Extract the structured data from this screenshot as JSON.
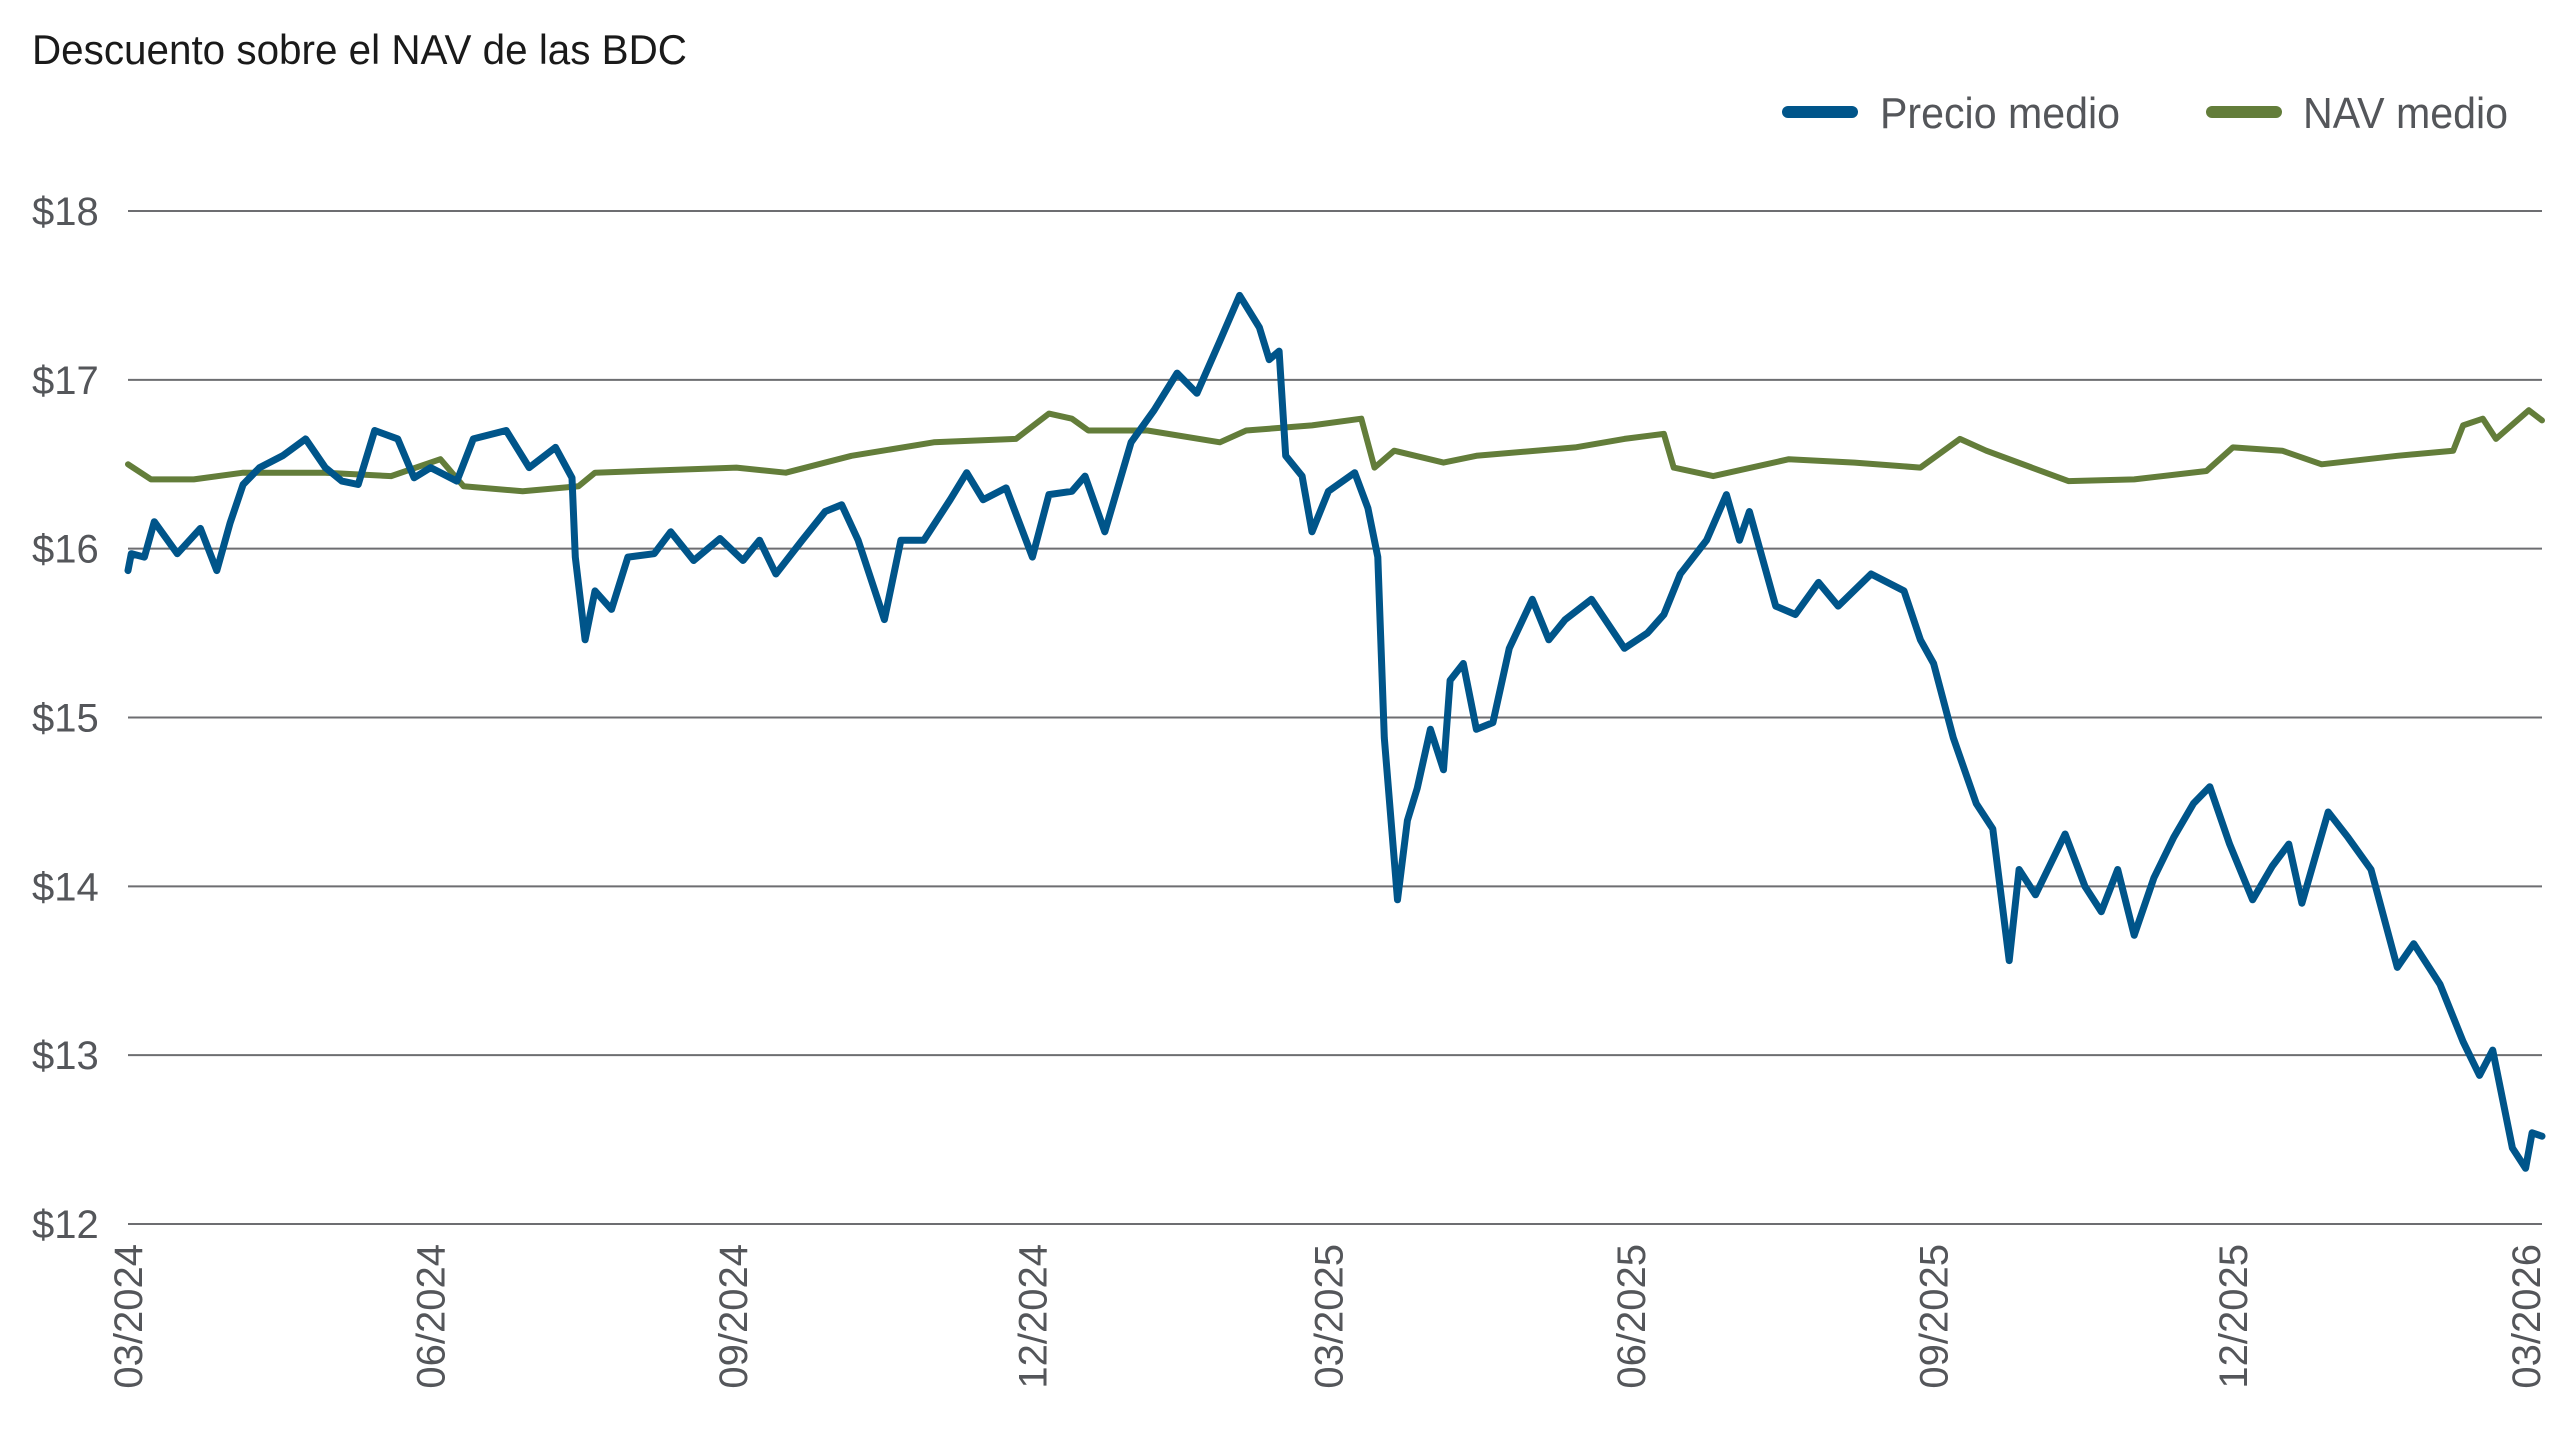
{
  "chart_data": {
    "type": "line",
    "title": "Descuento sobre el NAV de las BDC",
    "xlabel": "",
    "ylabel": "",
    "ylim": [
      12,
      18
    ],
    "xlim": [
      "2024-03-01",
      "2026-03-05"
    ],
    "grid": "horizontal",
    "legend_position": "top-right",
    "y_ticks": [
      12,
      13,
      14,
      15,
      16,
      17,
      18
    ],
    "y_tick_labels": [
      "$12",
      "$13",
      "$14",
      "$15",
      "$16",
      "$17",
      "$18"
    ],
    "x_ticks": [
      "2024-03-01",
      "2024-06-01",
      "2024-09-01",
      "2024-12-01",
      "2025-03-01",
      "2025-06-01",
      "2025-09-01",
      "2025-12-01",
      "2026-03-01"
    ],
    "x_tick_labels": [
      "03/2024",
      "06/2024",
      "09/2024",
      "12/2024",
      "03/2025",
      "06/2025",
      "09/2025",
      "12/2025",
      "03/2026"
    ],
    "series": [
      {
        "name": "Precio medio",
        "color": "#00558a",
        "points": [
          [
            "2024-03-01",
            15.87
          ],
          [
            "2024-03-02",
            15.97
          ],
          [
            "2024-03-06",
            15.95
          ],
          [
            "2024-03-09",
            16.16
          ],
          [
            "2024-03-16",
            15.97
          ],
          [
            "2024-03-23",
            16.12
          ],
          [
            "2024-03-28",
            15.87
          ],
          [
            "2024-04-01",
            16.15
          ],
          [
            "2024-04-05",
            16.38
          ],
          [
            "2024-04-10",
            16.48
          ],
          [
            "2024-04-17",
            16.55
          ],
          [
            "2024-04-24",
            16.65
          ],
          [
            "2024-04-30",
            16.48
          ],
          [
            "2024-05-05",
            16.4
          ],
          [
            "2024-05-10",
            16.38
          ],
          [
            "2024-05-15",
            16.7
          ],
          [
            "2024-05-22",
            16.65
          ],
          [
            "2024-05-27",
            16.42
          ],
          [
            "2024-06-01",
            16.48
          ],
          [
            "2024-06-09",
            16.4
          ],
          [
            "2024-06-14",
            16.65
          ],
          [
            "2024-06-24",
            16.7
          ],
          [
            "2024-07-01",
            16.48
          ],
          [
            "2024-07-09",
            16.6
          ],
          [
            "2024-07-14",
            16.42
          ],
          [
            "2024-07-15",
            15.95
          ],
          [
            "2024-07-18",
            15.46
          ],
          [
            "2024-07-21",
            15.75
          ],
          [
            "2024-07-26",
            15.64
          ],
          [
            "2024-07-31",
            15.95
          ],
          [
            "2024-08-08",
            15.97
          ],
          [
            "2024-08-13",
            16.1
          ],
          [
            "2024-08-20",
            15.93
          ],
          [
            "2024-08-28",
            16.06
          ],
          [
            "2024-09-04",
            15.93
          ],
          [
            "2024-09-09",
            16.05
          ],
          [
            "2024-09-14",
            15.85
          ],
          [
            "2024-09-22",
            16.05
          ],
          [
            "2024-09-29",
            16.22
          ],
          [
            "2024-10-04",
            16.26
          ],
          [
            "2024-10-09",
            16.05
          ],
          [
            "2024-10-17",
            15.58
          ],
          [
            "2024-10-22",
            16.05
          ],
          [
            "2024-10-29",
            16.05
          ],
          [
            "2024-11-06",
            16.29
          ],
          [
            "2024-11-11",
            16.45
          ],
          [
            "2024-11-16",
            16.29
          ],
          [
            "2024-11-23",
            16.36
          ],
          [
            "2024-12-01",
            15.95
          ],
          [
            "2024-12-06",
            16.32
          ],
          [
            "2024-12-13",
            16.34
          ],
          [
            "2024-12-17",
            16.43
          ],
          [
            "2024-12-23",
            16.1
          ],
          [
            "2024-12-31",
            16.63
          ],
          [
            "2025-01-07",
            16.82
          ],
          [
            "2025-01-14",
            17.04
          ],
          [
            "2025-01-20",
            16.92
          ],
          [
            "2025-01-27",
            17.23
          ],
          [
            "2025-02-02",
            17.5
          ],
          [
            "2025-02-08",
            17.31
          ],
          [
            "2025-02-11",
            17.12
          ],
          [
            "2025-02-14",
            17.17
          ],
          [
            "2025-02-16",
            16.55
          ],
          [
            "2025-02-21",
            16.43
          ],
          [
            "2025-02-24",
            16.1
          ],
          [
            "2025-03-01",
            16.34
          ],
          [
            "2025-03-09",
            16.45
          ],
          [
            "2025-03-13",
            16.24
          ],
          [
            "2025-03-16",
            15.95
          ],
          [
            "2025-03-18",
            14.88
          ],
          [
            "2025-03-22",
            13.92
          ],
          [
            "2025-03-25",
            14.39
          ],
          [
            "2025-03-28",
            14.58
          ],
          [
            "2025-04-01",
            14.93
          ],
          [
            "2025-04-05",
            14.69
          ],
          [
            "2025-04-07",
            15.22
          ],
          [
            "2025-04-11",
            15.32
          ],
          [
            "2025-04-15",
            14.93
          ],
          [
            "2025-04-20",
            14.97
          ],
          [
            "2025-04-25",
            15.41
          ],
          [
            "2025-05-02",
            15.7
          ],
          [
            "2025-05-07",
            15.46
          ],
          [
            "2025-05-12",
            15.58
          ],
          [
            "2025-05-20",
            15.7
          ],
          [
            "2025-05-30",
            15.41
          ],
          [
            "2025-06-06",
            15.5
          ],
          [
            "2025-06-11",
            15.61
          ],
          [
            "2025-06-16",
            15.85
          ],
          [
            "2025-06-24",
            16.05
          ],
          [
            "2025-06-30",
            16.32
          ],
          [
            "2025-07-04",
            16.05
          ],
          [
            "2025-07-07",
            16.22
          ],
          [
            "2025-07-15",
            15.66
          ],
          [
            "2025-07-21",
            15.61
          ],
          [
            "2025-07-28",
            15.8
          ],
          [
            "2025-08-03",
            15.66
          ],
          [
            "2025-08-13",
            15.85
          ],
          [
            "2025-08-23",
            15.75
          ],
          [
            "2025-08-28",
            15.46
          ],
          [
            "2025-09-01",
            15.32
          ],
          [
            "2025-09-07",
            14.88
          ],
          [
            "2025-09-14",
            14.49
          ],
          [
            "2025-09-19",
            14.34
          ],
          [
            "2025-09-24",
            13.56
          ],
          [
            "2025-09-27",
            14.1
          ],
          [
            "2025-10-02",
            13.95
          ],
          [
            "2025-10-11",
            14.31
          ],
          [
            "2025-10-17",
            14.0
          ],
          [
            "2025-10-22",
            13.85
          ],
          [
            "2025-10-27",
            14.1
          ],
          [
            "2025-11-01",
            13.71
          ],
          [
            "2025-11-07",
            14.05
          ],
          [
            "2025-11-13",
            14.29
          ],
          [
            "2025-11-19",
            14.49
          ],
          [
            "2025-11-24",
            14.59
          ],
          [
            "2025-11-30",
            14.25
          ],
          [
            "2025-12-07",
            13.92
          ],
          [
            "2025-12-13",
            14.12
          ],
          [
            "2025-12-18",
            14.25
          ],
          [
            "2025-12-22",
            13.9
          ],
          [
            "2025-12-30",
            14.44
          ],
          [
            "2026-01-05",
            14.29
          ],
          [
            "2026-01-12",
            14.1
          ],
          [
            "2026-01-20",
            13.52
          ],
          [
            "2026-01-25",
            13.66
          ],
          [
            "2026-02-02",
            13.42
          ],
          [
            "2026-02-09",
            13.08
          ],
          [
            "2026-02-14",
            12.88
          ],
          [
            "2026-02-18",
            13.03
          ],
          [
            "2026-02-24",
            12.45
          ],
          [
            "2026-02-28",
            12.33
          ],
          [
            "2026-03-02",
            12.54
          ],
          [
            "2026-03-05",
            12.52
          ]
        ]
      },
      {
        "name": "NAV medio",
        "color": "#637d3a",
        "points": [
          [
            "2024-03-01",
            16.5
          ],
          [
            "2024-03-08",
            16.41
          ],
          [
            "2024-03-21",
            16.41
          ],
          [
            "2024-04-05",
            16.45
          ],
          [
            "2024-04-30",
            16.45
          ],
          [
            "2024-05-20",
            16.43
          ],
          [
            "2024-06-04",
            16.53
          ],
          [
            "2024-06-11",
            16.37
          ],
          [
            "2024-06-29",
            16.34
          ],
          [
            "2024-07-16",
            16.37
          ],
          [
            "2024-07-21",
            16.45
          ],
          [
            "2024-09-02",
            16.48
          ],
          [
            "2024-09-17",
            16.45
          ],
          [
            "2024-10-07",
            16.55
          ],
          [
            "2024-11-01",
            16.63
          ],
          [
            "2024-11-26",
            16.65
          ],
          [
            "2024-12-06",
            16.8
          ],
          [
            "2024-12-13",
            16.77
          ],
          [
            "2024-12-18",
            16.7
          ],
          [
            "2025-01-05",
            16.7
          ],
          [
            "2025-01-27",
            16.63
          ],
          [
            "2025-02-04",
            16.7
          ],
          [
            "2025-02-24",
            16.73
          ],
          [
            "2025-03-11",
            16.77
          ],
          [
            "2025-03-15",
            16.48
          ],
          [
            "2025-03-21",
            16.58
          ],
          [
            "2025-04-05",
            16.51
          ],
          [
            "2025-04-15",
            16.55
          ],
          [
            "2025-05-15",
            16.6
          ],
          [
            "2025-05-30",
            16.65
          ],
          [
            "2025-06-11",
            16.68
          ],
          [
            "2025-06-14",
            16.48
          ],
          [
            "2025-06-26",
            16.43
          ],
          [
            "2025-07-19",
            16.53
          ],
          [
            "2025-08-08",
            16.51
          ],
          [
            "2025-08-28",
            16.48
          ],
          [
            "2025-09-09",
            16.65
          ],
          [
            "2025-09-17",
            16.58
          ],
          [
            "2025-10-12",
            16.4
          ],
          [
            "2025-11-01",
            16.41
          ],
          [
            "2025-11-23",
            16.46
          ],
          [
            "2025-12-01",
            16.6
          ],
          [
            "2025-12-16",
            16.58
          ],
          [
            "2025-12-28",
            16.5
          ],
          [
            "2026-01-20",
            16.55
          ],
          [
            "2026-02-06",
            16.58
          ],
          [
            "2026-02-09",
            16.73
          ],
          [
            "2026-02-15",
            16.77
          ],
          [
            "2026-02-19",
            16.65
          ],
          [
            "2026-03-01",
            16.82
          ],
          [
            "2026-03-05",
            16.76
          ]
        ]
      }
    ]
  }
}
